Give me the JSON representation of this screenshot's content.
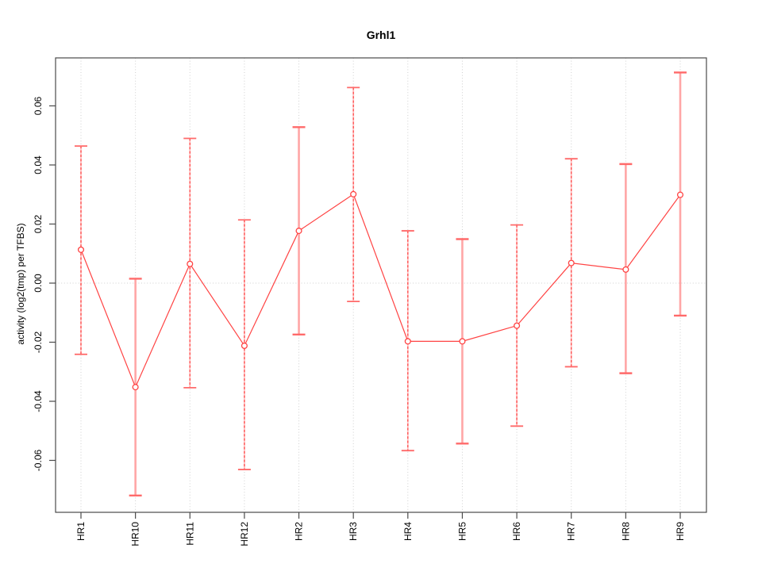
{
  "title": "Grhl1",
  "axes": {
    "ylabel": "activity (log2(tmp) per TFBS)",
    "xlabel": ""
  },
  "chart_data": {
    "type": "line",
    "subtype": "points-with-error-bars",
    "title": "Grhl1",
    "xlabel": "",
    "ylabel": "activity (log2(tmp) per TFBS)",
    "categories": [
      "HR1",
      "HR10",
      "HR11",
      "HR12",
      "HR2",
      "HR3",
      "HR4",
      "HR5",
      "HR6",
      "HR7",
      "HR8",
      "HR9"
    ],
    "series": [
      {
        "name": "activity",
        "values": [
          0.0113,
          -0.0352,
          0.0065,
          -0.0212,
          0.0177,
          0.0301,
          -0.0197,
          -0.0197,
          -0.0144,
          0.0068,
          0.0046,
          0.0299
        ],
        "ci_low": [
          -0.0241,
          -0.0719,
          -0.0354,
          -0.0631,
          -0.0174,
          -0.0062,
          -0.0567,
          -0.0543,
          -0.0484,
          -0.0283,
          -0.0305,
          -0.011
        ],
        "ci_high": [
          0.0464,
          0.0015,
          0.049,
          0.0214,
          0.0528,
          0.0662,
          0.0177,
          0.0149,
          0.0197,
          0.0421,
          0.0403,
          0.0713
        ],
        "bar_styles": [
          "dashed",
          "solid",
          "dashed",
          "dashed",
          "solid",
          "dashed",
          "dashed",
          "solid",
          "dashed",
          "dashed",
          "solid",
          "solid"
        ]
      }
    ],
    "ylim": [
      -0.0776,
      0.0762
    ],
    "y_tick_values": [
      -0.06,
      -0.04,
      -0.02,
      0,
      0.02,
      0.04,
      0.06
    ],
    "y_tick_labels": [
      "-0.06",
      "-0.04",
      "-0.02",
      "0.00",
      "0.02",
      "0.04",
      "0.06"
    ],
    "x_tick_labels_rotated": true,
    "grid": "dotted vertical gridline at each category; dotted horizontal line at y=0; no legend",
    "legend": null,
    "colors": {
      "line": "#ff4343",
      "marker_stroke": "#ff4343",
      "marker_fill": "#ffffff",
      "error_bar_dashed": "#ff4343",
      "error_bar_dashed_underlay": "#ffc2c2",
      "error_bar_solid": "#ffa6a6",
      "error_bar_cap": "#ff6a6a",
      "grid": "#cfcfcf",
      "frame": "#4a4a4a",
      "tick_text": "#000000"
    }
  }
}
